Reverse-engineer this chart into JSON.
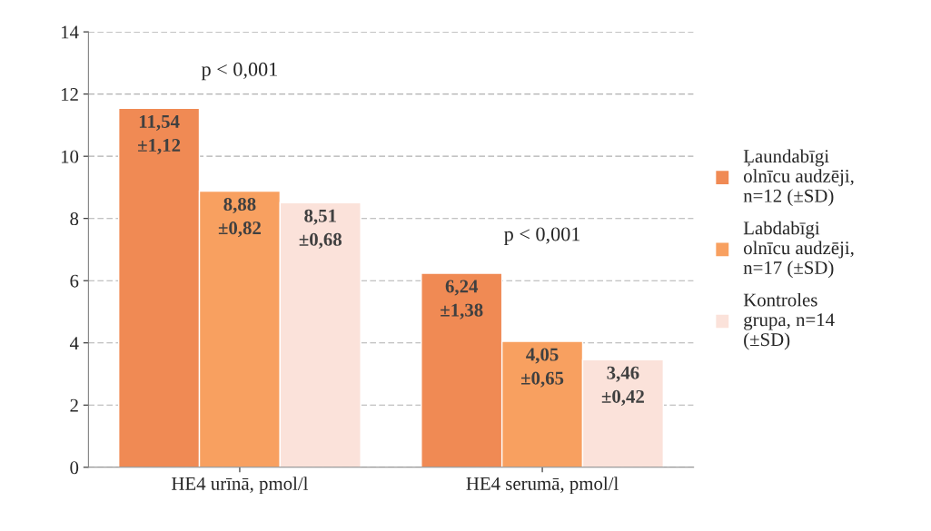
{
  "chart_data": {
    "type": "bar",
    "categories": [
      "HE4 urīnā, pmol/l",
      "HE4 serumā, pmol/l"
    ],
    "series": [
      {
        "name": "Ļaundabīgi olnīcu audzēji, n=12 (±SD)",
        "color": "#f08a54",
        "values": [
          11.54,
          6.24
        ],
        "value_labels": [
          "11,54\n±1,12",
          "6,24\n±1,38"
        ]
      },
      {
        "name": "Labdabīgi olnīcu audzēji, n=17 (±SD)",
        "color": "#f8a060",
        "values": [
          8.88,
          4.05
        ],
        "value_labels": [
          "8,88\n±0,82",
          "4,05\n±0,65"
        ]
      },
      {
        "name": "Kontroles grupa, n=14 (±SD)",
        "color": "#fbe2da",
        "values": [
          8.51,
          3.46
        ],
        "value_labels": [
          "8,51\n±0,68",
          "3,46\n±0,42"
        ]
      }
    ],
    "ylim": [
      0,
      14
    ],
    "yticks": [
      0,
      2,
      4,
      6,
      8,
      10,
      12,
      14
    ],
    "grid": "y",
    "legend": "right",
    "annotations": [
      "p < 0,001",
      "p < 0,001"
    ]
  }
}
